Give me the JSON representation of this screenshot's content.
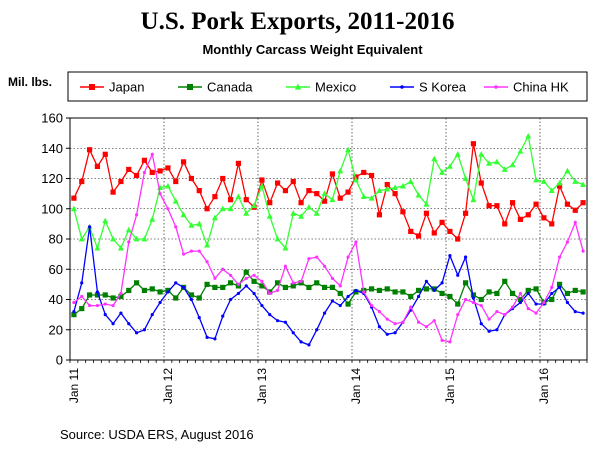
{
  "chart_data": {
    "type": "line",
    "title": "U.S. Pork Exports, 2011-2016",
    "subtitle": "Monthly Carcass Weight Equivalent",
    "ylabel": "Mil. lbs.",
    "xlabel": "",
    "ylim": [
      0,
      160
    ],
    "yticks": [
      0,
      20,
      40,
      60,
      80,
      100,
      120,
      140,
      160
    ],
    "xticks": [
      "Jan 11",
      "Jan 12",
      "Jan 13",
      "Jan 14",
      "Jan 15",
      "Jan 16"
    ],
    "grid": true,
    "legend": "top",
    "source": "Source: USDA ERS, August 2016",
    "series": [
      {
        "name": "Japan",
        "color": "#ff0000",
        "marker": "square",
        "values": [
          107,
          118,
          139,
          128,
          136,
          111,
          118,
          126,
          122,
          132,
          124,
          125,
          127,
          118,
          131,
          120,
          112,
          100,
          108,
          120,
          106,
          130,
          106,
          101,
          119,
          104,
          117,
          112,
          118,
          104,
          112,
          110,
          105,
          123,
          107,
          111,
          121,
          124,
          122,
          96,
          116,
          110,
          98,
          85,
          82,
          97,
          84,
          91,
          85,
          80,
          97,
          143,
          117,
          102,
          102,
          90,
          104,
          93,
          96,
          103,
          94,
          90,
          115,
          103,
          99,
          104
        ]
      },
      {
        "name": "Canada",
        "color": "#008000",
        "marker": "square",
        "values": [
          30,
          34,
          43,
          43,
          43,
          41,
          42,
          46,
          51,
          46,
          47,
          45,
          46,
          41,
          48,
          43,
          41,
          50,
          48,
          48,
          51,
          49,
          58,
          52,
          49,
          45,
          51,
          48,
          49,
          51,
          48,
          51,
          48,
          48,
          44,
          37,
          45,
          46,
          47,
          46,
          47,
          45,
          45,
          42,
          46,
          47,
          47,
          44,
          42,
          37,
          51,
          43,
          40,
          45,
          44,
          52,
          44,
          40,
          46,
          47,
          38,
          40,
          50,
          44,
          46,
          45
        ]
      },
      {
        "name": "Mexico",
        "color": "#33ff33",
        "marker": "triangle",
        "values": [
          100,
          80,
          88,
          74,
          92,
          80,
          74,
          86,
          80,
          80,
          93,
          114,
          115,
          105,
          96,
          89,
          90,
          76,
          94,
          100,
          100,
          108,
          97,
          102,
          115,
          95,
          80,
          74,
          97,
          95,
          101,
          97,
          110,
          106,
          125,
          139,
          119,
          108,
          107,
          112,
          113,
          114,
          115,
          118,
          109,
          103,
          133,
          124,
          128,
          136,
          120,
          106,
          136,
          130,
          131,
          126,
          129,
          138,
          148,
          119,
          118,
          112,
          117,
          125,
          118,
          116
        ]
      },
      {
        "name": "S Korea",
        "color": "#0000ff",
        "marker": "circle",
        "values": [
          32,
          51,
          88,
          45,
          30,
          24,
          31,
          24,
          18,
          20,
          30,
          38,
          45,
          51,
          48,
          40,
          28,
          15,
          14,
          29,
          40,
          44,
          49,
          44,
          36,
          30,
          26,
          25,
          18,
          12,
          10,
          20,
          31,
          39,
          36,
          42,
          46,
          44,
          35,
          22,
          17,
          18,
          25,
          33,
          42,
          52,
          46,
          51,
          69,
          56,
          68,
          41,
          24,
          19,
          20,
          30,
          34,
          38,
          44,
          37,
          37,
          44,
          48,
          38,
          32,
          31
        ]
      },
      {
        "name": "China HK",
        "color": "#ff33ff",
        "marker": "circle",
        "values": [
          38,
          42,
          36,
          36,
          37,
          36,
          44,
          78,
          96,
          124,
          136,
          110,
          100,
          88,
          70,
          72,
          72,
          65,
          54,
          60,
          56,
          50,
          54,
          56,
          52,
          44,
          46,
          62,
          51,
          52,
          67,
          68,
          62,
          54,
          49,
          68,
          78,
          45,
          36,
          32,
          27,
          24,
          25,
          35,
          25,
          22,
          26,
          13,
          12,
          30,
          40,
          38,
          36,
          27,
          32,
          30,
          35,
          44,
          34,
          31,
          38,
          48,
          68,
          78,
          91,
          72
        ]
      }
    ]
  }
}
